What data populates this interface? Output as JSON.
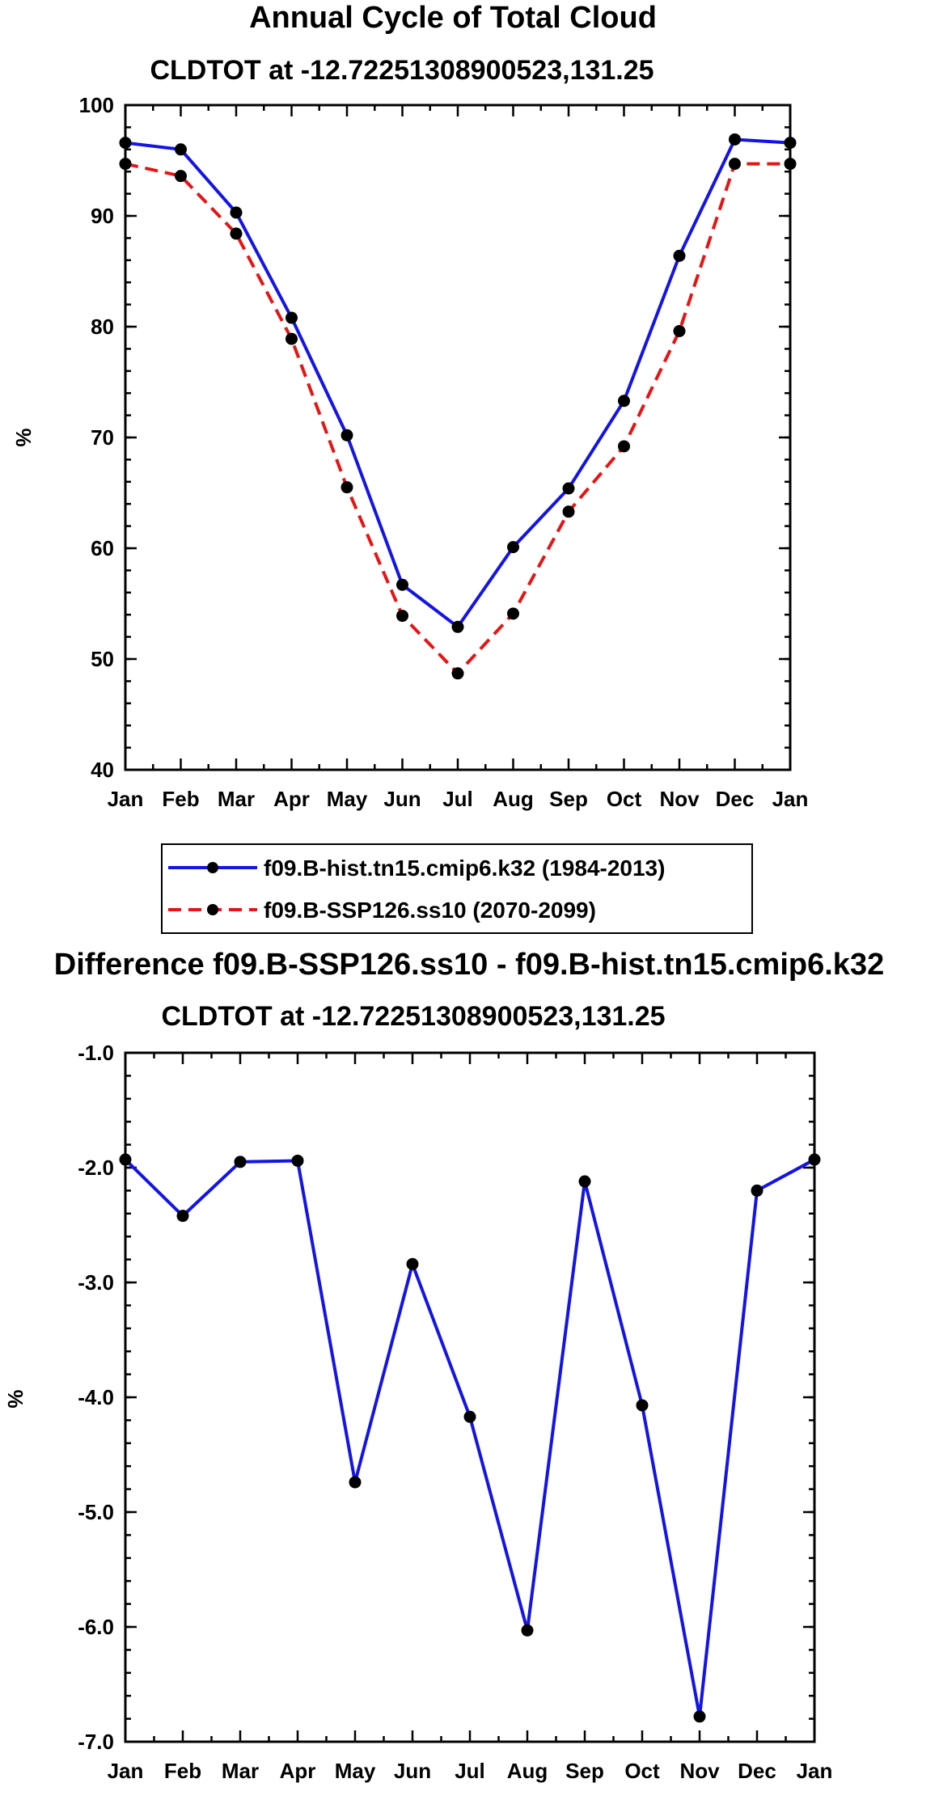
{
  "chart_data": [
    {
      "type": "line",
      "title": "Annual Cycle of Total Cloud",
      "subtitle": "CLDTOT at -12.72251308900523,131.25",
      "xlabel": "",
      "ylabel": "%",
      "categories": [
        "Jan",
        "Feb",
        "Mar",
        "Apr",
        "May",
        "Jun",
        "Jul",
        "Aug",
        "Sep",
        "Oct",
        "Nov",
        "Dec",
        "Jan"
      ],
      "ylim": [
        40,
        100
      ],
      "yticks": [
        40,
        50,
        60,
        70,
        80,
        90,
        100
      ],
      "ytick_labels": [
        "40",
        "50",
        "60",
        "70",
        "80",
        "90",
        "100"
      ],
      "series": [
        {
          "name": "f09.B-hist.tn15.cmip6.k32 (1984-2013)",
          "color": "#1414e6",
          "dash": "solid",
          "values": [
            96.6,
            96.0,
            90.3,
            80.8,
            70.2,
            56.7,
            52.9,
            60.1,
            65.4,
            73.3,
            86.4,
            96.9,
            96.6
          ]
        },
        {
          "name": "f09.B-SSP126.ss10 (2070-2099)",
          "color": "#e61414",
          "dash": "dashed",
          "values": [
            94.7,
            93.6,
            88.4,
            78.9,
            65.5,
            53.9,
            48.7,
            54.1,
            63.3,
            69.2,
            79.6,
            94.7,
            94.7
          ]
        }
      ],
      "legend": "below"
    },
    {
      "type": "line",
      "title": "Difference f09.B-SSP126.ss10 - f09.B-hist.tn15.cmip6.k32",
      "subtitle": "CLDTOT at -12.72251308900523,131.25",
      "xlabel": "",
      "ylabel": "%",
      "categories": [
        "Jan",
        "Feb",
        "Mar",
        "Apr",
        "May",
        "Jun",
        "Jul",
        "Aug",
        "Sep",
        "Oct",
        "Nov",
        "Dec",
        "Jan"
      ],
      "ylim": [
        -7.0,
        -1.0
      ],
      "yticks": [
        -7,
        -6,
        -5,
        -4,
        -3,
        -2,
        -1
      ],
      "ytick_labels": [
        "-7.0",
        "-6.0",
        "-5.0",
        "-4.0",
        "-3.0",
        "-2.0",
        "-1.0"
      ],
      "series": [
        {
          "name": "Difference",
          "color": "#1414e6",
          "dash": "solid",
          "values": [
            -1.93,
            -2.42,
            -1.95,
            -1.94,
            -4.74,
            -2.84,
            -4.17,
            -6.03,
            -2.12,
            -4.07,
            -6.78,
            -2.2,
            -1.93
          ]
        }
      ]
    }
  ]
}
